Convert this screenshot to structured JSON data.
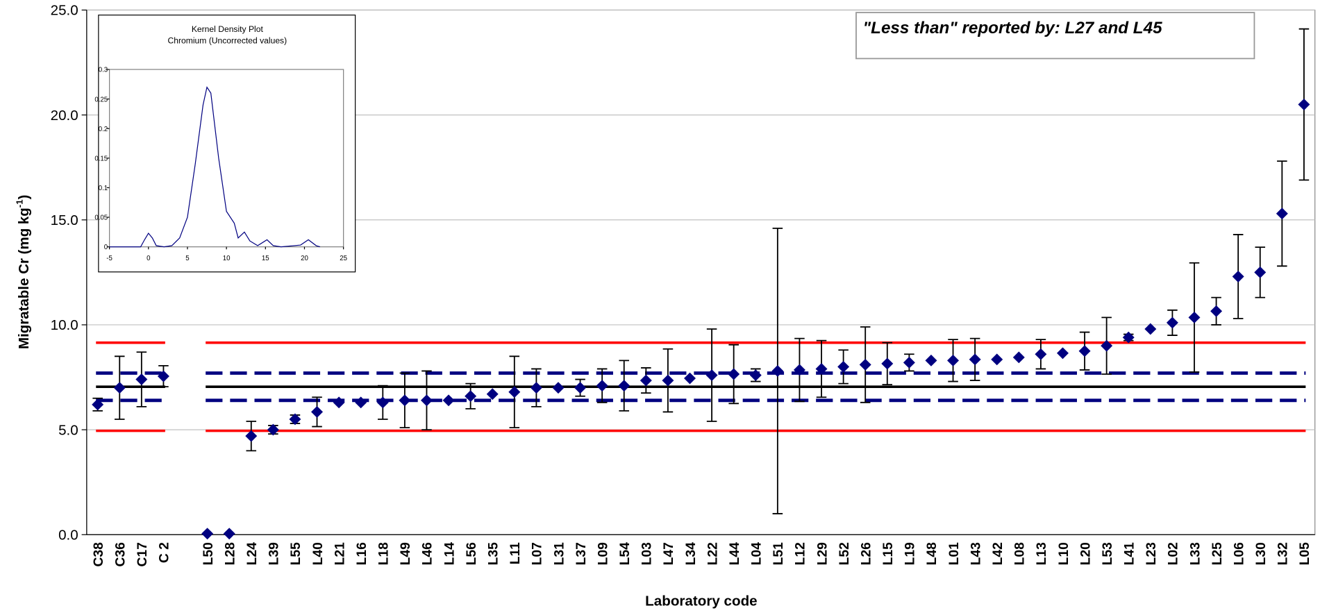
{
  "chart_data": {
    "type": "scatter-errorbar",
    "ylabel": {
      "text": "Migratable Cr (mg kg",
      "superscript": "-1",
      "suffix": ")"
    },
    "xlabel": "Laboratory code",
    "annotation": "\"Less than\" reported by: L27 and L45",
    "ylim": [
      0,
      25
    ],
    "yticks": [
      {
        "value": 0,
        "label": "0.0"
      },
      {
        "value": 5,
        "label": "5.0"
      },
      {
        "value": 10,
        "label": "10.0"
      },
      {
        "value": 15,
        "label": "15.0"
      },
      {
        "value": 20,
        "label": "20.0"
      },
      {
        "value": 25,
        "label": "25.0"
      }
    ],
    "grid": true,
    "categories": [
      "C38",
      "C36",
      "C17",
      "C 2",
      null,
      "L50",
      "L28",
      "L24",
      "L39",
      "L55",
      "L40",
      "L21",
      "L16",
      "L18",
      "L49",
      "L46",
      "L14",
      "L56",
      "L35",
      "L11",
      "L07",
      "L31",
      "L37",
      "L09",
      "L54",
      "L03",
      "L47",
      "L34",
      "L22",
      "L44",
      "L04",
      "L51",
      "L12",
      "L29",
      "L52",
      "L26",
      "L15",
      "L19",
      "L48",
      "L01",
      "L43",
      "L42",
      "L08",
      "L13",
      "L10",
      "L20",
      "L53",
      "L41",
      "L23",
      "L02",
      "L33",
      "L25",
      "L06",
      "L30",
      "L32",
      "L05"
    ],
    "series": [
      {
        "color": "#000080",
        "values": [
          6.2,
          7.0,
          7.4,
          7.55,
          null,
          0.05,
          0.05,
          4.7,
          5.0,
          5.5,
          5.85,
          6.3,
          6.3,
          6.3,
          6.4,
          6.4,
          6.4,
          6.6,
          6.7,
          6.8,
          7.0,
          7.0,
          7.0,
          7.1,
          7.1,
          7.35,
          7.35,
          7.45,
          7.6,
          7.65,
          7.6,
          7.8,
          7.85,
          7.9,
          8.0,
          8.1,
          8.15,
          8.2,
          8.3,
          8.3,
          8.35,
          8.35,
          8.45,
          8.6,
          8.65,
          8.75,
          9.0,
          9.4,
          9.8,
          10.1,
          10.35,
          10.65,
          12.3,
          12.5,
          15.3,
          20.5
        ],
        "errors": [
          0.3,
          1.5,
          1.3,
          0.5,
          null,
          null,
          null,
          0.7,
          0.2,
          0.2,
          0.7,
          null,
          null,
          0.8,
          1.3,
          1.4,
          null,
          0.6,
          null,
          1.7,
          0.9,
          null,
          0.4,
          0.8,
          1.2,
          0.6,
          1.5,
          null,
          2.2,
          1.4,
          0.3,
          6.8,
          1.5,
          1.35,
          0.8,
          1.8,
          1.0,
          0.4,
          null,
          1.0,
          1.0,
          null,
          null,
          0.7,
          null,
          0.9,
          1.35,
          0.15,
          null,
          0.6,
          2.6,
          0.65,
          2.0,
          1.2,
          2.5,
          3.6
        ]
      }
    ],
    "reference_lines": [
      {
        "value": 9.15,
        "color": "#ff0000",
        "style": "solid"
      },
      {
        "value": 4.95,
        "color": "#ff0000",
        "style": "solid"
      },
      {
        "value": 7.7,
        "color": "#000080",
        "style": "dashed"
      },
      {
        "value": 6.4,
        "color": "#000080",
        "style": "dashed"
      },
      {
        "value": 7.05,
        "color": "#000000",
        "style": "solid"
      }
    ],
    "inset": {
      "type": "line",
      "title": "Kernel Density Plot",
      "subtitle": "Chromium (Uncorrected values)",
      "color": "#000080",
      "xlim": [
        -5,
        25
      ],
      "xticks": [
        -5,
        0,
        5,
        10,
        15,
        20,
        25
      ],
      "ylim": [
        0,
        0.3
      ],
      "yticks": [
        0,
        0.05,
        0.1,
        0.15,
        0.2,
        0.25,
        0.3
      ],
      "x": [
        -5,
        -1,
        -0.5,
        0,
        0.5,
        1,
        2,
        3,
        4,
        5,
        6,
        7,
        7.5,
        8,
        9,
        10,
        11,
        11.5,
        12.3,
        13,
        14,
        15.2,
        16,
        17,
        19.5,
        20.5,
        21.5,
        22
      ],
      "values": [
        0,
        0,
        0.012,
        0.023,
        0.015,
        0.002,
        0,
        0.002,
        0.015,
        0.05,
        0.14,
        0.24,
        0.27,
        0.26,
        0.15,
        0.06,
        0.04,
        0.015,
        0.025,
        0.01,
        0.002,
        0.012,
        0.002,
        0,
        0.003,
        0.012,
        0.002,
        0
      ]
    }
  }
}
